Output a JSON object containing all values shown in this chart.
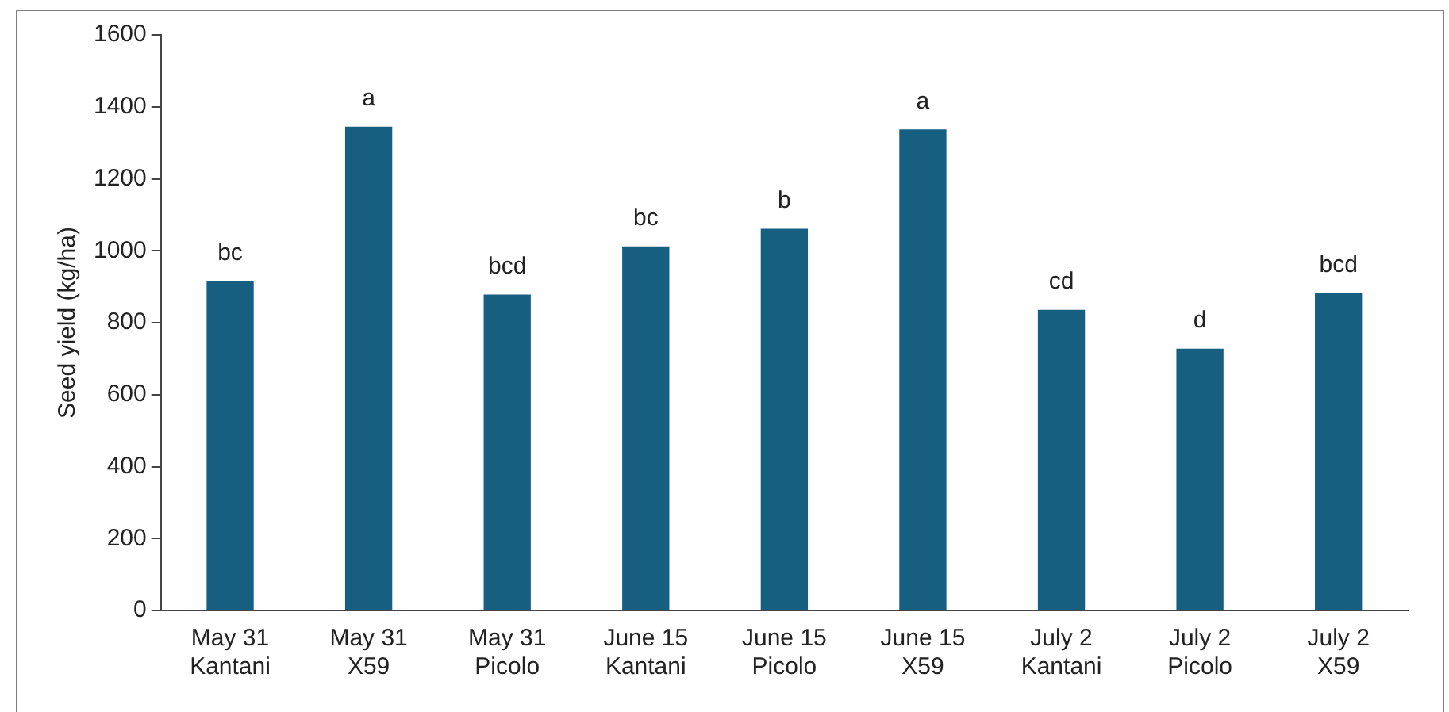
{
  "chart_data": {
    "type": "bar",
    "ylabel": "Seed yield (kg/ha)",
    "categories": [
      "May 31\nKantani",
      "May 31\nX59",
      "May 31\nPicolo",
      "June 15\nKantani",
      "June 15\nPicolo",
      "June 15\nX59",
      "July 2\nKantani",
      "July 2\nPicolo",
      "July 2\nX59"
    ],
    "values": [
      915,
      1345,
      878,
      1012,
      1061,
      1337,
      836,
      728,
      883
    ],
    "value_labels": [
      "bc",
      "a",
      "bcd",
      "bc",
      "b",
      "a",
      "cd",
      "d",
      "bcd"
    ],
    "color": "#175f80",
    "ylim": [
      0,
      1600
    ],
    "yticks": [
      0,
      200,
      400,
      600,
      800,
      1000,
      1200,
      1400,
      1600
    ],
    "grid": false,
    "legend": false
  }
}
